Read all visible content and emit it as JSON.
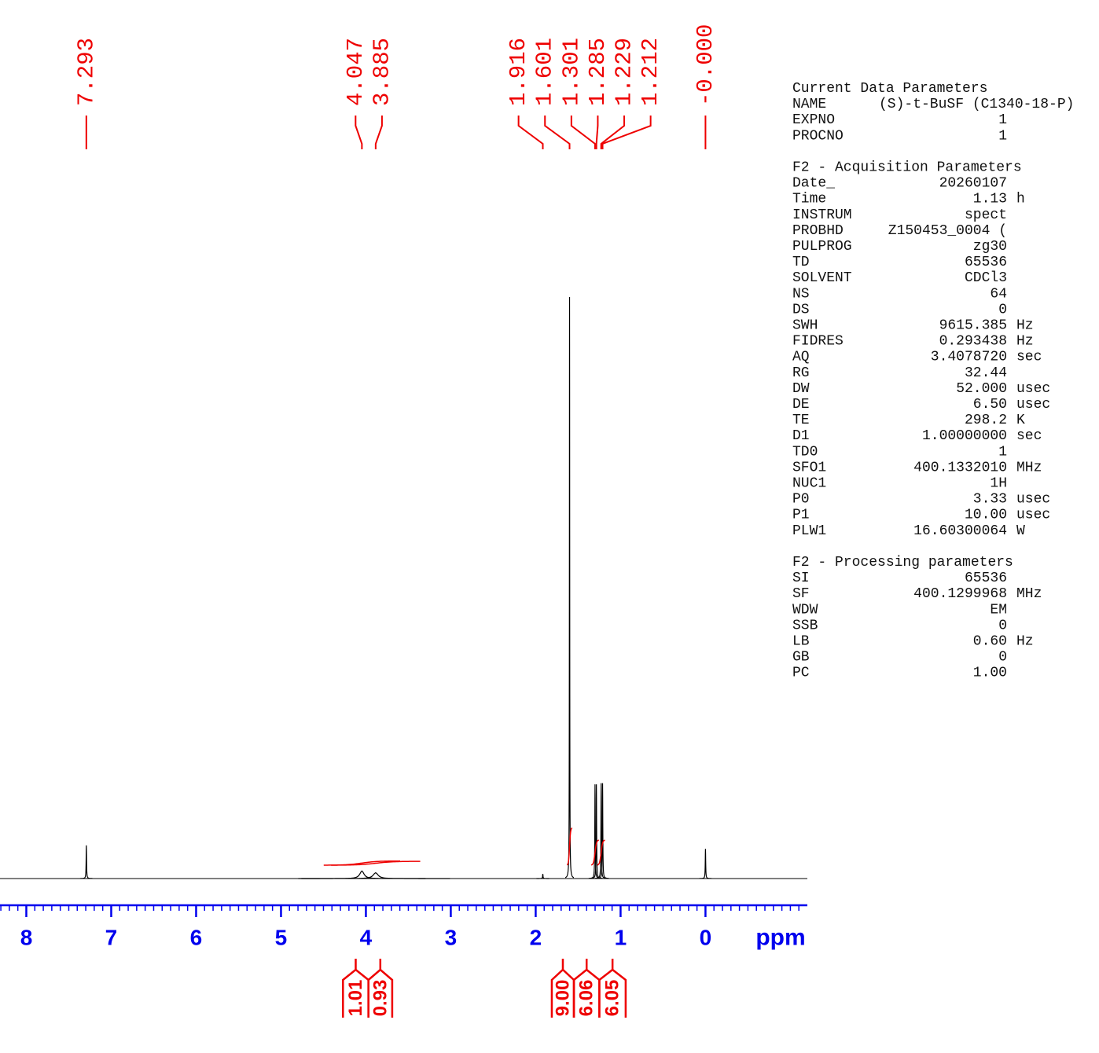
{
  "chart_data": {
    "type": "nmr",
    "xlabel": "ppm",
    "xlim": [
      8.31,
      -1.2
    ],
    "xticks": [
      8,
      7,
      6,
      5,
      4,
      3,
      2,
      1,
      0
    ],
    "xminor": 0.1,
    "ylim": [
      0,
      100
    ],
    "line_color": "#000000",
    "axis_color": "#0000ee",
    "annotation_color": "#ee0000",
    "peaks": [
      {
        "x": 7.293,
        "intensity": 5.7,
        "width": 0.003
      },
      {
        "x": 4.047,
        "intensity": 1.3,
        "width": 0.03
      },
      {
        "x": 3.885,
        "intensity": 1.0,
        "width": 0.035
      },
      {
        "x": 1.916,
        "intensity": 0.8,
        "width": 0.003
      },
      {
        "x": 1.601,
        "intensity": 100,
        "width": 0.002
      },
      {
        "x": 1.301,
        "intensity": 16.2,
        "width": 0.003
      },
      {
        "x": 1.285,
        "intensity": 16.2,
        "width": 0.003
      },
      {
        "x": 1.229,
        "intensity": 16.4,
        "width": 0.003
      },
      {
        "x": 1.212,
        "intensity": 16.4,
        "width": 0.003
      },
      {
        "x": {
          "value": 0,
          "label": "-0.000"
        },
        "intensity": 5.1,
        "width": 0.003
      }
    ],
    "integrals": [
      {
        "range": [
          4.27,
          3.97
        ],
        "value": 1.01
      },
      {
        "range": [
          3.97,
          3.69
        ],
        "value": 0.93
      },
      {
        "range": [
          1.81,
          1.55
        ],
        "value": {
          "value": 9,
          "label": "9.00"
        }
      },
      {
        "range": [
          1.55,
          1.25
        ],
        "value": 6.06
      },
      {
        "range": [
          1.25,
          0.94
        ],
        "value": 6.05
      }
    ],
    "parameters": [
      {
        "title": "Current Data Parameters",
        "rows": [
          [
            "NAME",
            "(S)-t-BuSF (C1340-18-P)"
          ],
          [
            "EXPNO",
            "1"
          ],
          [
            "PROCNO",
            "1"
          ]
        ]
      },
      {
        "title": "F2 - Acquisition Parameters",
        "rows": [
          [
            "Date_",
            "20260107"
          ],
          [
            "Time",
            "1.13",
            "h"
          ],
          [
            "INSTRUM",
            "spect"
          ],
          [
            "PROBHD",
            "Z150453_0004 ("
          ],
          [
            "PULPROG",
            "zg30"
          ],
          [
            "TD",
            "65536"
          ],
          [
            "SOLVENT",
            "CDCl3"
          ],
          [
            "NS",
            "64"
          ],
          [
            "DS",
            "0"
          ],
          [
            "SWH",
            "9615.385",
            "Hz"
          ],
          [
            "FIDRES",
            "0.293438",
            "Hz"
          ],
          [
            "AQ",
            "3.4078720",
            "sec"
          ],
          [
            "RG",
            "32.44"
          ],
          [
            "DW",
            "52.000",
            "usec"
          ],
          [
            "DE",
            "6.50",
            "usec"
          ],
          [
            "TE",
            "298.2",
            "K"
          ],
          [
            "D1",
            "1.00000000",
            "sec"
          ],
          [
            "TD0",
            "1"
          ],
          [
            "SFO1",
            "400.1332010",
            "MHz"
          ],
          [
            "NUC1",
            "1H"
          ],
          [
            "P0",
            "3.33",
            "usec"
          ],
          [
            "P1",
            "10.00",
            "usec"
          ],
          [
            "PLW1",
            "16.60300064",
            "W"
          ]
        ]
      },
      {
        "title": "F2 - Processing parameters",
        "rows": [
          [
            "SI",
            "65536"
          ],
          [
            "SF",
            "400.1299968",
            "MHz"
          ],
          [
            "WDW",
            "EM"
          ],
          [
            "SSB",
            "0"
          ],
          [
            "LB",
            "0.60",
            "Hz"
          ],
          [
            "GB",
            "0"
          ],
          [
            "PC",
            "1.00"
          ]
        ]
      }
    ]
  }
}
